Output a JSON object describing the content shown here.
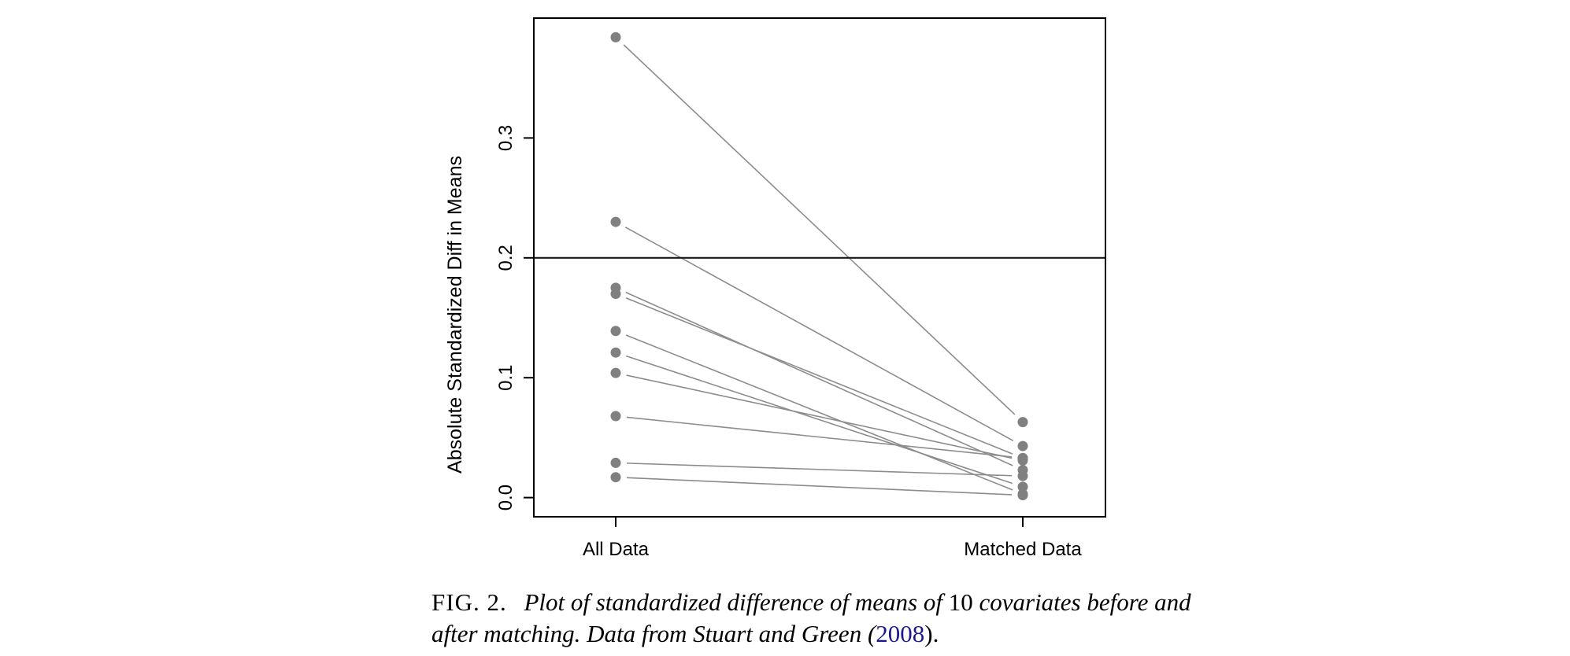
{
  "chart_data": {
    "type": "line",
    "categories": [
      "All Data",
      "Matched Data"
    ],
    "ylabel": "Absolute Standardized Diff in Means",
    "xlabel": "",
    "ylim": [
      -0.016,
      0.4
    ],
    "yticks": [
      "0.0",
      "0.1",
      "0.2",
      "0.3"
    ],
    "ytick_values": [
      0.0,
      0.1,
      0.2,
      0.3
    ],
    "reference_line": 0.2,
    "grid": false,
    "series": [
      {
        "values": [
          0.384,
          0.063
        ]
      },
      {
        "values": [
          0.23,
          0.043
        ]
      },
      {
        "values": [
          0.175,
          0.023
        ]
      },
      {
        "values": [
          0.17,
          0.033
        ]
      },
      {
        "values": [
          0.139,
          0.003
        ]
      },
      {
        "values": [
          0.121,
          0.009
        ]
      },
      {
        "values": [
          0.104,
          0.031
        ]
      },
      {
        "values": [
          0.068,
          0.033
        ]
      },
      {
        "values": [
          0.029,
          0.018
        ]
      },
      {
        "values": [
          0.017,
          0.002
        ]
      }
    ],
    "colors": {
      "points": "#808080",
      "lines": "#8c8c8c",
      "reference": "#1a1a1a",
      "frame": "#000000"
    }
  },
  "caption": {
    "label": "FIG. 2.",
    "text_part1": "Plot of standardized difference of means of",
    "count": "10",
    "text_part2": "covariates before and after matching. Data from Stuart and Green (",
    "year": "2008",
    "text_part3": ")."
  }
}
